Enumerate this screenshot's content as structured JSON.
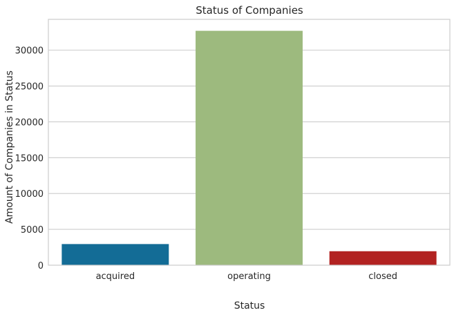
{
  "chart_data": {
    "type": "bar",
    "title": "Status of Companies",
    "xlabel": "Status",
    "ylabel": "Amount of Companies in Status",
    "categories": [
      "acquired",
      "operating",
      "closed"
    ],
    "values": [
      2950,
      32700,
      1950
    ],
    "colors": [
      "#136c96",
      "#9dba7e",
      "#b22221"
    ],
    "ylim": [
      0,
      34300
    ],
    "yticks": [
      0,
      5000,
      10000,
      15000,
      20000,
      25000,
      30000
    ],
    "ytick_labels": [
      "0",
      "5000",
      "10000",
      "15000",
      "20000",
      "25000",
      "30000"
    ],
    "grid": true,
    "grid_color": "#cccccc",
    "axes_edge_color": "#cccccc"
  }
}
